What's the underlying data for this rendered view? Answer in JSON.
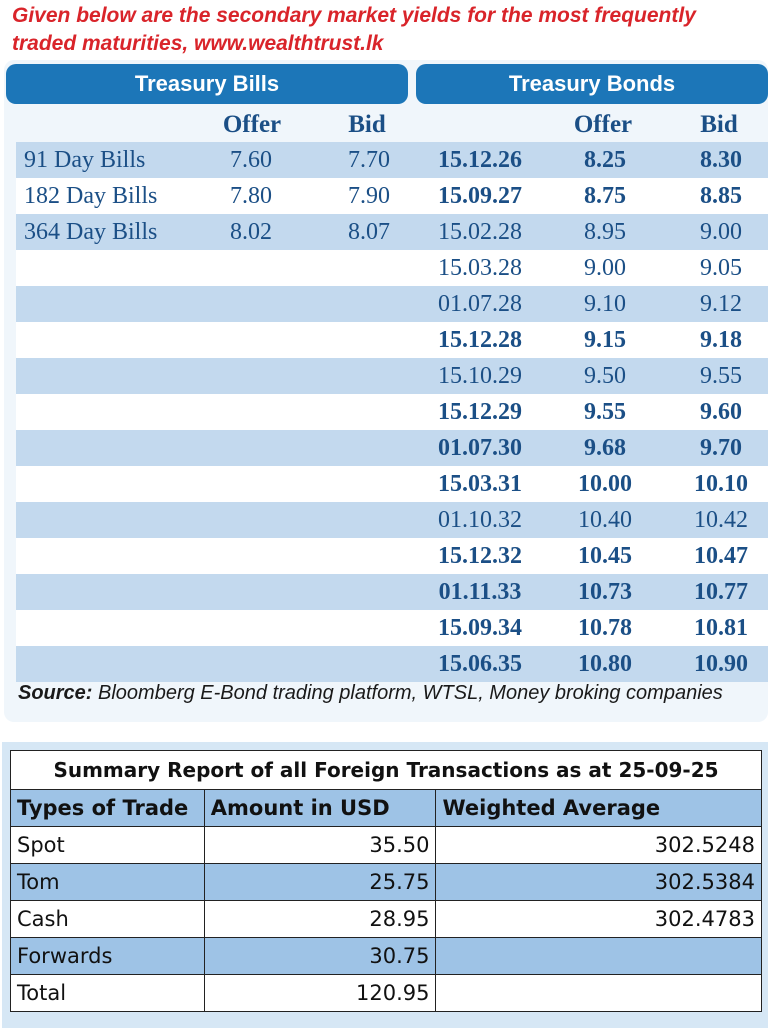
{
  "intro": {
    "line1": "Given below are the secondary market yields for the most frequently",
    "line2": "traded maturities, www.wealthtrust.lk"
  },
  "yields": {
    "bills_title": "Treasury Bills",
    "bonds_title": "Treasury Bonds",
    "col_offer": "Offer",
    "col_bid": "Bid",
    "bills": [
      {
        "name": "91 Day Bills",
        "offer": "7.60",
        "bid": "7.70"
      },
      {
        "name": "182 Day Bills",
        "offer": "7.80",
        "bid": "7.90"
      },
      {
        "name": "364 Day Bills",
        "offer": "8.02",
        "bid": "8.07"
      }
    ],
    "bonds": [
      {
        "date": "15.12.26",
        "offer": "8.25",
        "bid": "8.30",
        "bold": true
      },
      {
        "date": "15.09.27",
        "offer": "8.75",
        "bid": "8.85",
        "bold": true
      },
      {
        "date": "15.02.28",
        "offer": "8.95",
        "bid": "9.00",
        "bold": false
      },
      {
        "date": "15.03.28",
        "offer": "9.00",
        "bid": "9.05",
        "bold": false
      },
      {
        "date": "01.07.28",
        "offer": "9.10",
        "bid": "9.12",
        "bold": false
      },
      {
        "date": "15.12.28",
        "offer": "9.15",
        "bid": "9.18",
        "bold": true
      },
      {
        "date": "15.10.29",
        "offer": "9.50",
        "bid": "9.55",
        "bold": false
      },
      {
        "date": "15.12.29",
        "offer": "9.55",
        "bid": "9.60",
        "bold": true
      },
      {
        "date": "01.07.30",
        "offer": "9.68",
        "bid": "9.70",
        "bold": true
      },
      {
        "date": "15.03.31",
        "offer": "10.00",
        "bid": "10.10",
        "bold": true
      },
      {
        "date": "01.10.32",
        "offer": "10.40",
        "bid": "10.42",
        "bold": false
      },
      {
        "date": "15.12.32",
        "offer": "10.45",
        "bid": "10.47",
        "bold": true
      },
      {
        "date": "01.11.33",
        "offer": "10.73",
        "bid": "10.77",
        "bold": true
      },
      {
        "date": "15.09.34",
        "offer": "10.78",
        "bid": "10.81",
        "bold": true
      },
      {
        "date": "15.06.35",
        "offer": "10.80",
        "bid": "10.90",
        "bold": true
      }
    ],
    "source_label": "Source:",
    "source_text": " Bloomberg E-Bond trading platform, WTSL, Money broking companies"
  },
  "summary": {
    "title": "Summary Report of all Foreign Transactions as at 25-09-25",
    "headers": [
      "Types of Trade",
      "Amount in USD",
      "Weighted Average"
    ],
    "rows": [
      {
        "type": "Spot",
        "amount": "35.50",
        "wavg": "302.5248"
      },
      {
        "type": "Tom",
        "amount": "25.75",
        "wavg": "302.5384"
      },
      {
        "type": "Cash",
        "amount": "28.95",
        "wavg": "302.4783"
      },
      {
        "type": "Forwards",
        "amount": "30.75",
        "wavg": ""
      },
      {
        "type": "Total",
        "amount": "120.95",
        "wavg": ""
      }
    ]
  },
  "colors": {
    "accent": "#1c76b8",
    "row_alt": "#c3d9ee",
    "intro_red": "#d9242a",
    "summary_alt": "#9ec3e6"
  }
}
